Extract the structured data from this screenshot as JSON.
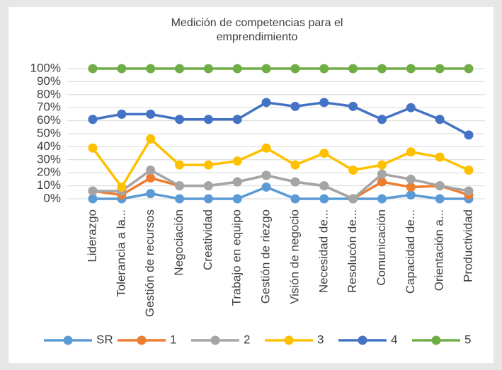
{
  "chart_data": {
    "type": "line",
    "title": [
      "Medición de competencias para el",
      "emprendimiento"
    ],
    "categories": [
      "Liderazgo",
      "Tolerancia a la...",
      "Gestión de recursos",
      "Negociación",
      "Creatividad",
      "Trabajo en equipo",
      "Gestión de riezgo",
      "Visión de negocio",
      "Necesidad de...",
      "Resolucón de...",
      "Comunicación",
      "Capacidad de...",
      "Orientación a...",
      "Productividad"
    ],
    "series": [
      {
        "name": "SR",
        "color": "#5b9bd5",
        "values": [
          0,
          0,
          4,
          0,
          0,
          0,
          9,
          0,
          0,
          0,
          0,
          3,
          0,
          0
        ]
      },
      {
        "name": "1",
        "color": "#ed7d31",
        "values": [
          6,
          3,
          16,
          10,
          10,
          13,
          18,
          13,
          10,
          0,
          13,
          9,
          10,
          3
        ]
      },
      {
        "name": "2",
        "color": "#a5a5a5",
        "values": [
          6,
          6,
          22,
          10,
          10,
          13,
          18,
          13,
          10,
          0,
          19,
          15,
          10,
          6
        ]
      },
      {
        "name": "3",
        "color": "#ffc000",
        "values": [
          39,
          9,
          46,
          26,
          26,
          29,
          39,
          26,
          35,
          22,
          26,
          36,
          32,
          22
        ]
      },
      {
        "name": "4",
        "color": "#4472c4",
        "values": [
          61,
          65,
          65,
          61,
          61,
          61,
          74,
          71,
          74,
          71,
          61,
          70,
          61,
          49
        ]
      },
      {
        "name": "5",
        "color": "#70ad47",
        "values": [
          100,
          100,
          100,
          100,
          100,
          100,
          100,
          100,
          100,
          100,
          100,
          100,
          100,
          100
        ]
      }
    ],
    "ylim": [
      0,
      100
    ],
    "yticks": [
      {
        "value": 0,
        "label": "0%"
      },
      {
        "value": 10,
        "label": "10%"
      },
      {
        "value": 20,
        "label": "20%"
      },
      {
        "value": 30,
        "label": "30%"
      },
      {
        "value": 40,
        "label": "40%"
      },
      {
        "value": 50,
        "label": "50%"
      },
      {
        "value": 60,
        "label": "60%"
      },
      {
        "value": 70,
        "label": "70%"
      },
      {
        "value": 80,
        "label": "80%"
      },
      {
        "value": 90,
        "label": "90%"
      },
      {
        "value": 100,
        "label": "100%"
      }
    ],
    "grid": true,
    "legend": "bottom"
  }
}
